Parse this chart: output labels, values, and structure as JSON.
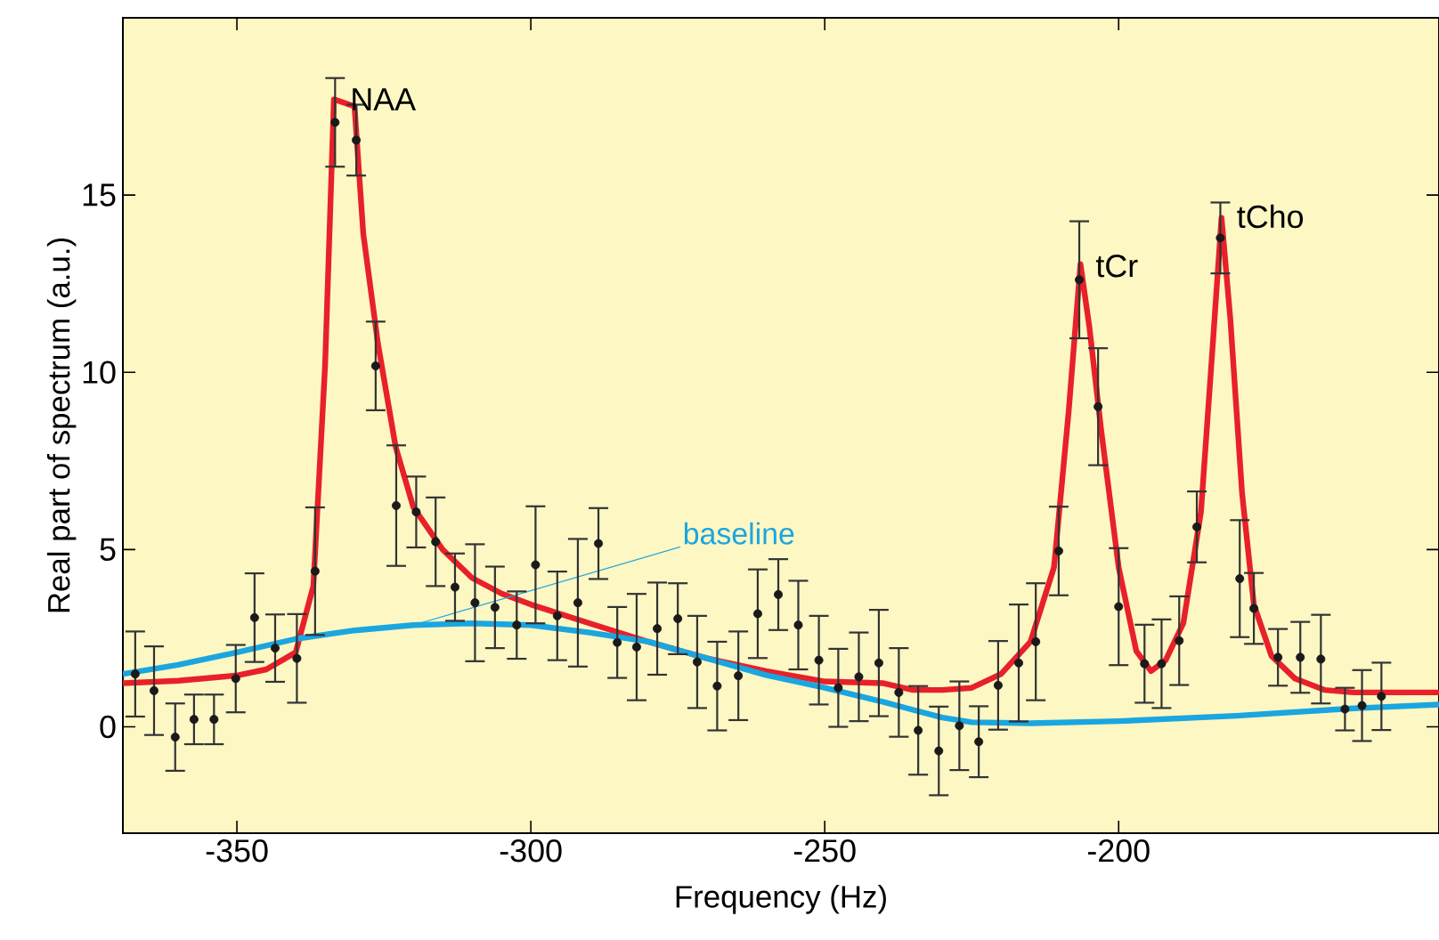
{
  "chart_data": {
    "type": "scatter",
    "xlabel": "Frequency (Hz)",
    "ylabel": "Real part of spectrum (a.u.)",
    "xlim": [
      -369.4,
      -145.5
    ],
    "ylim": [
      -3,
      20
    ],
    "xticks": [
      -350,
      -300,
      -250,
      -200
    ],
    "yticks": [
      0,
      5,
      10,
      15
    ],
    "grid": false,
    "annotations": [
      {
        "text": "NAA",
        "x": -333.3,
        "y": 17.7
      },
      {
        "text": "tCr",
        "x": -206.5,
        "y": 13.0
      },
      {
        "text": "tCho",
        "x": -182.5,
        "y": 14.4
      }
    ],
    "series": [
      {
        "type": "line",
        "color": "#e8202a",
        "x": [
          -369.4,
          -360,
          -350,
          -345,
          -340,
          -337,
          -335,
          -333.5,
          -330,
          -328.5,
          -326,
          -323,
          -320,
          -315,
          -310,
          -305,
          -300,
          -290,
          -280,
          -270,
          -260,
          -250,
          -240,
          -235,
          -230,
          -225,
          -220,
          -215,
          -211,
          -208.5,
          -206.5,
          -205,
          -203,
          -200,
          -197,
          -194.5,
          -192,
          -189,
          -186,
          -184,
          -182.5,
          -181,
          -179,
          -177,
          -174,
          -170,
          -165,
          -160,
          -145.5
        ],
        "values": [
          1.23,
          1.3,
          1.45,
          1.62,
          2.1,
          3.97,
          10.2,
          17.7,
          17.5,
          13.9,
          10.8,
          7.9,
          6.2,
          5.0,
          4.2,
          3.76,
          3.45,
          2.92,
          2.4,
          1.93,
          1.57,
          1.28,
          1.23,
          1.04,
          1.04,
          1.1,
          1.49,
          2.4,
          4.5,
          8.9,
          13.05,
          11.3,
          8.4,
          4.5,
          2.14,
          1.57,
          1.88,
          2.92,
          6.06,
          10.76,
          14.36,
          11.5,
          6.58,
          3.45,
          2.0,
          1.36,
          1.04,
          0.97,
          0.97
        ]
      },
      {
        "type": "line",
        "name": "baseline",
        "color": "#1aa6e0",
        "x": [
          -369.4,
          -360,
          -350,
          -340,
          -330,
          -320,
          -310,
          -300,
          -290,
          -280,
          -270,
          -260,
          -250,
          -240,
          -230,
          -225,
          -215,
          -200,
          -180,
          -160,
          -145.5
        ],
        "values": [
          1.49,
          1.75,
          2.1,
          2.48,
          2.72,
          2.87,
          2.92,
          2.87,
          2.66,
          2.4,
          1.93,
          1.46,
          1.1,
          0.7,
          0.26,
          0.13,
          0.1,
          0.16,
          0.31,
          0.52,
          0.63
        ]
      },
      {
        "color": "#1a1a1a",
        "marker": "circle",
        "x": [
          -367.3,
          -364.1,
          -360.5,
          -357.3,
          -353.9,
          -350.2,
          -347,
          -343.5,
          -339.8,
          -336.7,
          -333.3,
          -329.7,
          -326.4,
          -322.9,
          -319.5,
          -316.2,
          -312.9,
          -309.5,
          -306.1,
          -302.4,
          -299.2,
          -295.5,
          -292,
          -288.5,
          -285.3,
          -282,
          -278.5,
          -275,
          -271.7,
          -268.3,
          -264.7,
          -261.4,
          -257.9,
          -254.5,
          -251,
          -247.7,
          -244.2,
          -240.8,
          -237.4,
          -234.1,
          -230.6,
          -227.1,
          -223.8,
          -220.5,
          -217,
          -214.1,
          -210.2,
          -206.7,
          -203.5,
          -200,
          -195.6,
          -192.7,
          -189.7,
          -186.7,
          -182.7,
          -179.4,
          -177,
          -172.9,
          -169.1,
          -165.6,
          -161.5,
          -158.6,
          -155.3
        ],
        "values": [
          1.49,
          1.02,
          -0.29,
          0.21,
          0.21,
          1.36,
          3.08,
          2.22,
          1.93,
          4.39,
          17.05,
          16.55,
          10.18,
          6.24,
          6.06,
          5.22,
          3.94,
          3.5,
          3.37,
          2.87,
          4.57,
          3.13,
          3.5,
          5.17,
          2.38,
          2.25,
          2.77,
          3.05,
          1.83,
          1.15,
          1.44,
          3.19,
          3.73,
          2.87,
          1.88,
          1.1,
          1.41,
          1.8,
          0.97,
          -0.1,
          -0.68,
          0.03,
          -0.42,
          1.17,
          1.8,
          2.4,
          4.96,
          12.61,
          9.03,
          3.39,
          1.78,
          1.78,
          2.43,
          5.64,
          13.79,
          4.18,
          3.34,
          1.96,
          1.96,
          1.91,
          0.5,
          0.6,
          0.86
        ],
        "errors": [
          1.2,
          1.25,
          0.95,
          0.7,
          0.7,
          0.95,
          1.25,
          0.95,
          1.25,
          1.8,
          1.25,
          1.0,
          1.25,
          1.7,
          1.0,
          1.25,
          0.95,
          1.65,
          1.15,
          0.95,
          1.65,
          1.25,
          1.8,
          1.0,
          1.0,
          1.5,
          1.3,
          1.0,
          1.3,
          1.25,
          1.25,
          1.25,
          1.0,
          1.25,
          1.25,
          1.1,
          1.25,
          1.5,
          1.25,
          1.25,
          1.25,
          1.25,
          1.0,
          1.25,
          1.65,
          1.65,
          1.25,
          1.65,
          1.65,
          1.65,
          1.1,
          1.25,
          1.25,
          1.0,
          1.0,
          1.65,
          1.0,
          0.8,
          1.0,
          1.25,
          0.6,
          1.0,
          0.95
        ]
      }
    ]
  }
}
